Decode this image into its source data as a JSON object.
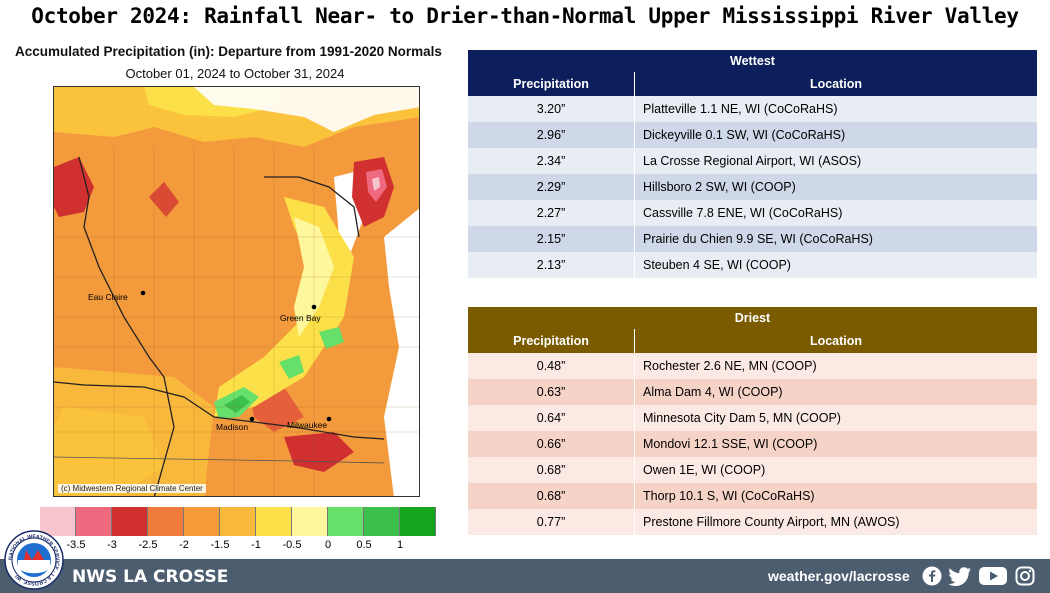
{
  "title": "October 2024:  Rainfall Near- to Drier-than-Normal Upper Mississippi River Valley",
  "map": {
    "title": "Accumulated Precipitation (in): Departure from 1991-2020 Normals",
    "subtitle": "October 01, 2024 to October 31, 2024",
    "credit": "(c) Midwestern Regional Climate Center",
    "cities": [
      "Eau Claire",
      "Green Bay",
      "Madison",
      "Milwaukee"
    ]
  },
  "legend": {
    "colors": [
      "#f7c5cd",
      "#ef6a7e",
      "#d03030",
      "#f07c3c",
      "#f49a38",
      "#f8b83c",
      "#fce04a",
      "#fff79c",
      "#66e06a",
      "#3cbf4c",
      "#16a41e"
    ],
    "labels": [
      "-3.5",
      "-3",
      "-2.5",
      "-2",
      "-1.5",
      "-1",
      "-0.5",
      "0",
      "0.5",
      "1"
    ]
  },
  "wettest": {
    "title": "Wettest",
    "col_precip": "Precipitation",
    "col_location": "Location",
    "rows": [
      {
        "precip": "3.20”",
        "location": "Platteville 1.1 NE, WI (CoCoRaHS)"
      },
      {
        "precip": "2.96”",
        "location": "Dickeyville 0.1 SW, WI (CoCoRaHS)"
      },
      {
        "precip": "2.34”",
        "location": "La Crosse Regional Airport, WI (ASOS)"
      },
      {
        "precip": "2.29”",
        "location": "Hillsboro 2 SW, WI (COOP)"
      },
      {
        "precip": "2.27”",
        "location": "Cassville 7.8 ENE, WI (CoCoRaHS)"
      },
      {
        "precip": "2.15”",
        "location": "Prairie du Chien 9.9 SE, WI (CoCoRaHS)"
      },
      {
        "precip": "2.13”",
        "location": "Steuben 4 SE, WI (COOP)"
      }
    ]
  },
  "driest": {
    "title": "Driest",
    "col_precip": "Precipitation",
    "col_location": "Location",
    "rows": [
      {
        "precip": "0.48”",
        "location": "Rochester 2.6 NE, MN (COOP)"
      },
      {
        "precip": "0.63”",
        "location": "Alma Dam 4, WI (COOP)"
      },
      {
        "precip": "0.64”",
        "location": "Minnesota City Dam 5, MN (COOP)"
      },
      {
        "precip": "0.66”",
        "location": "Mondovi 12.1 SSE, WI (COOP)"
      },
      {
        "precip": "0.68”",
        "location": "Owen 1E,  WI (COOP)"
      },
      {
        "precip": "0.68”",
        "location": "Thorp 10.1 S, WI (CoCoRaHS)"
      },
      {
        "precip": "0.77”",
        "location": "Prestone Fillmore County Airport, MN (AWOS)"
      }
    ]
  },
  "footer": {
    "office": "NWS LA CROSSE",
    "url": "weather.gov/lacrosse",
    "social_icons": [
      "facebook-icon",
      "twitter-icon",
      "youtube-icon",
      "instagram-icon"
    ]
  },
  "logo": {
    "text": "NATIONAL WEATHER SERVICE · LA CROSSE, WI"
  }
}
